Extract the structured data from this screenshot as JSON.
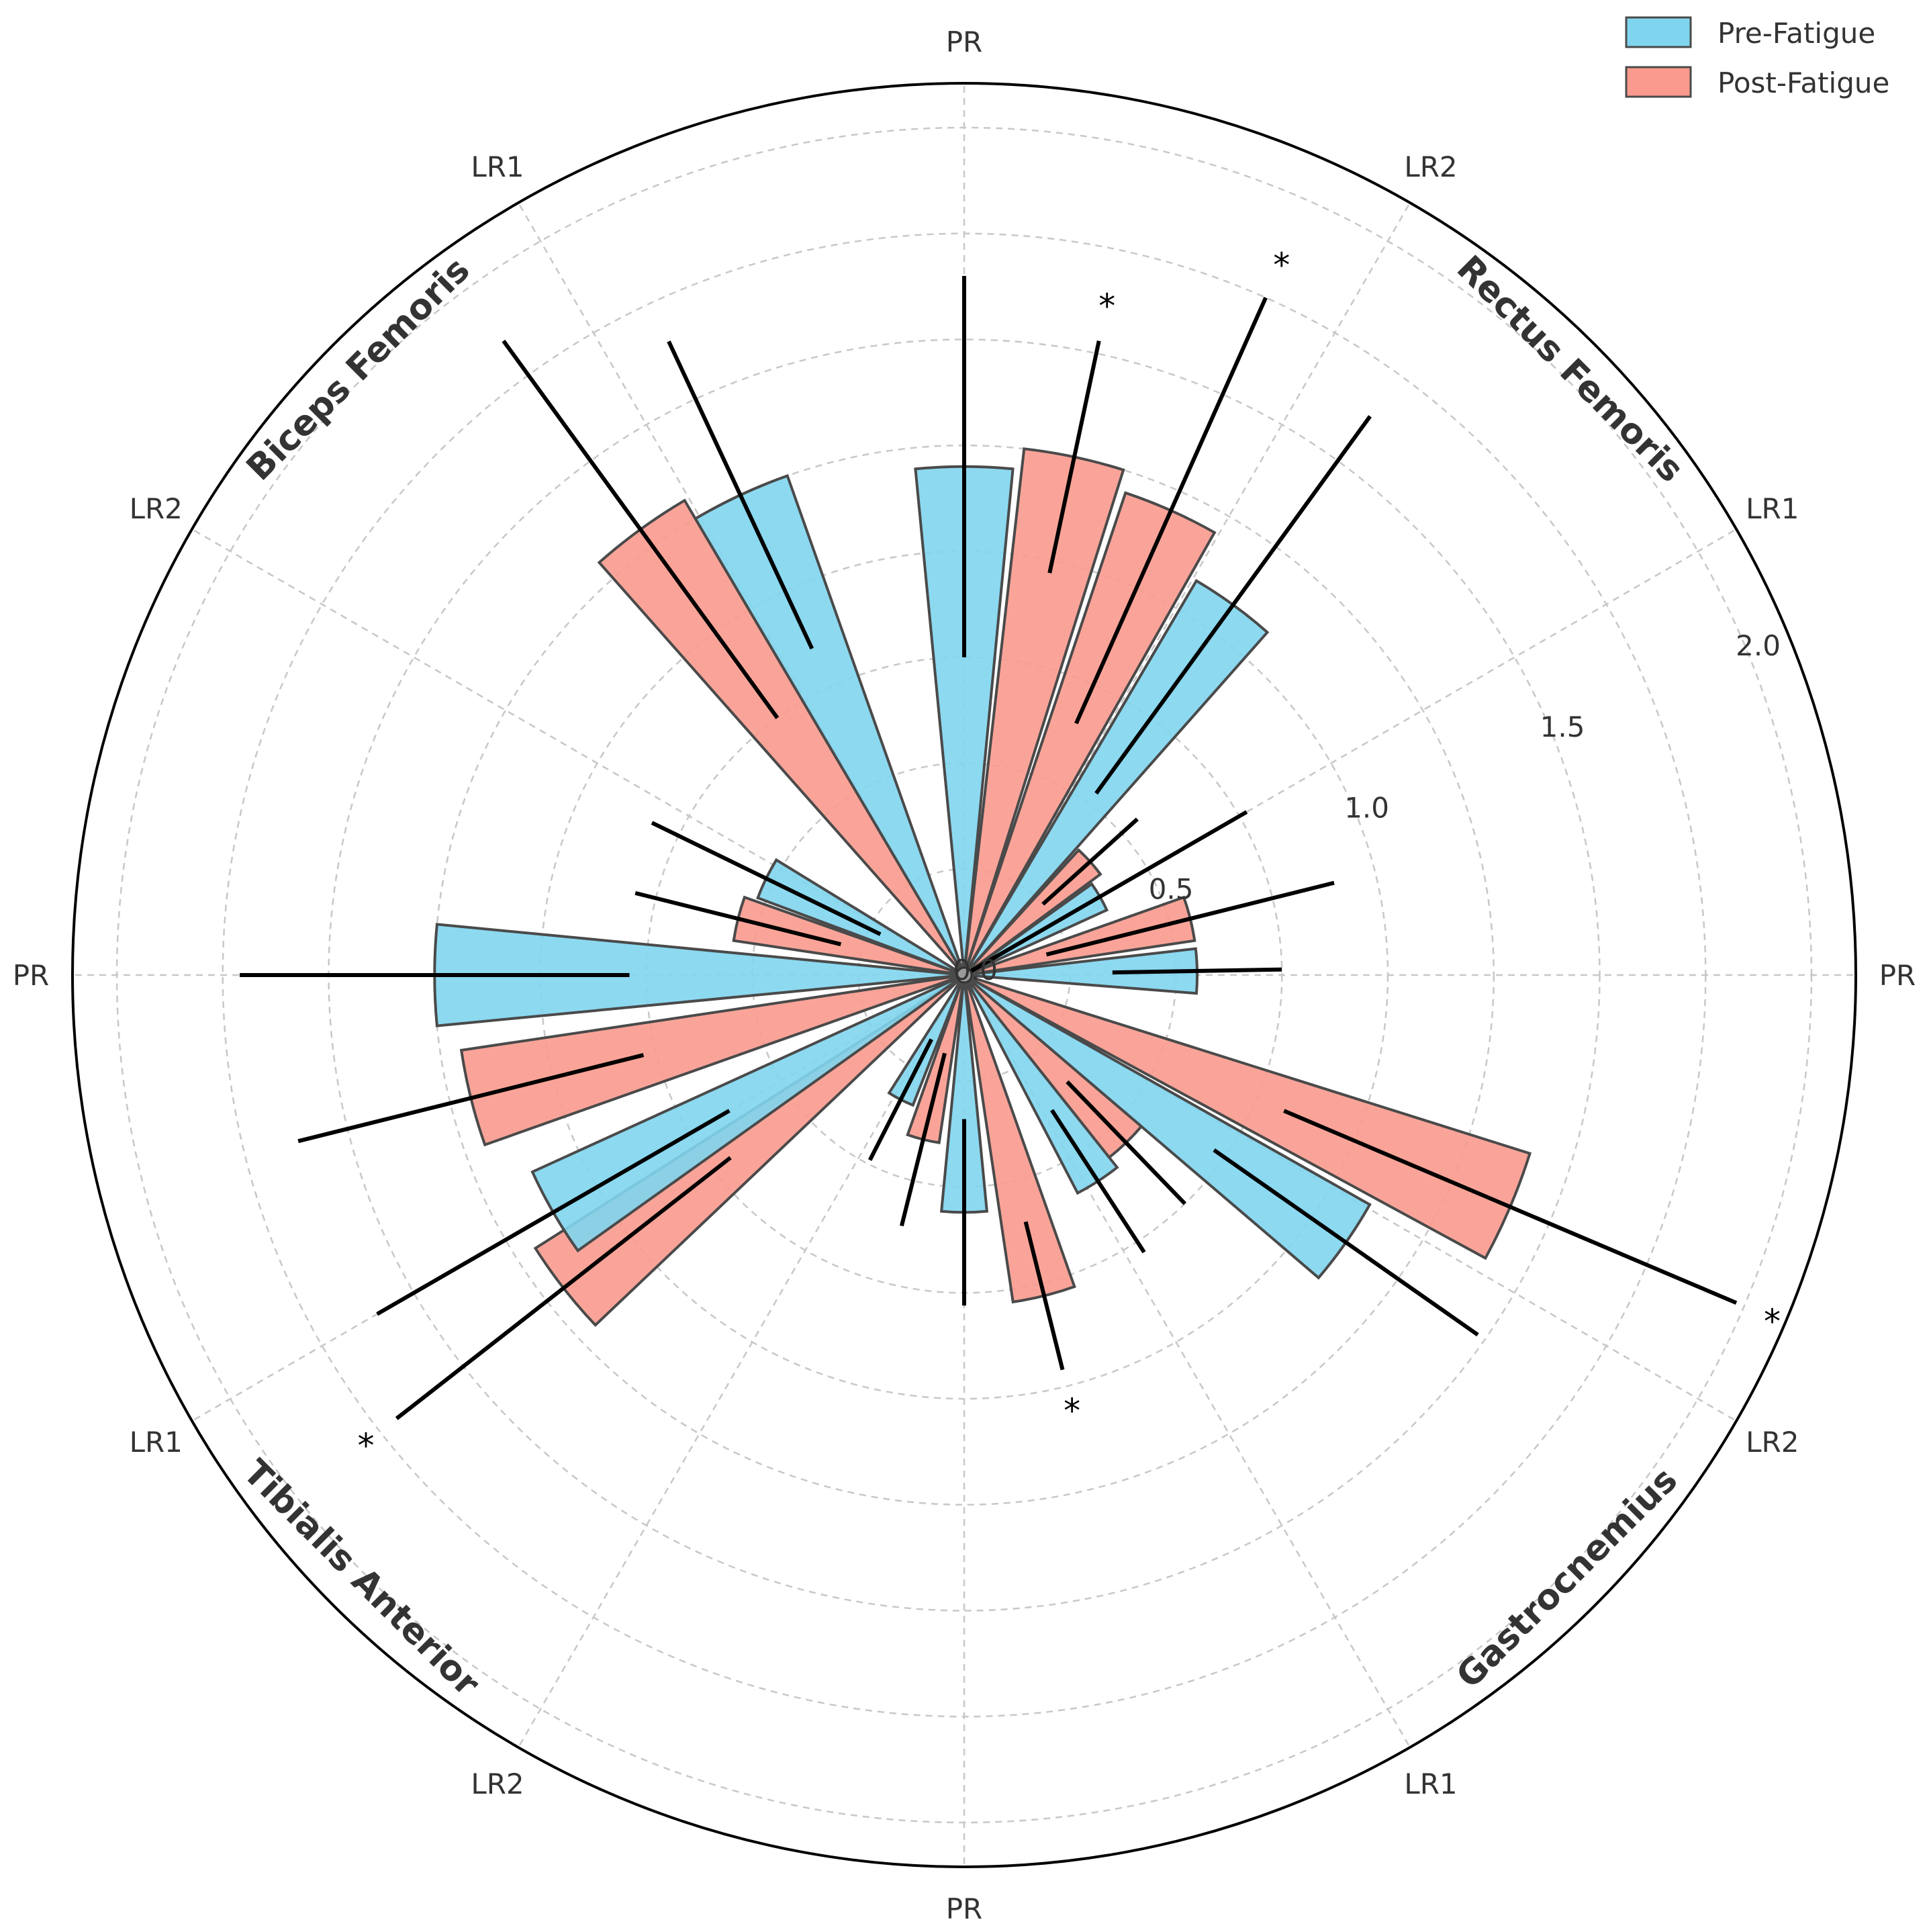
{
  "chart_data": {
    "type": "polar_bar",
    "title": "",
    "colors": {
      "pre": "#7fd5ee",
      "post": "#fa9a8e",
      "edge": "#4a4a4a",
      "grid": "#c8c8c8",
      "error": "#000000"
    },
    "radial_ticks": [
      0.0,
      0.5,
      1.0,
      1.5,
      2.0
    ],
    "radial_tick_labels": [
      "0.0",
      "0.5",
      "1.0",
      "1.5",
      "2.0"
    ],
    "rmax": 2.0,
    "legend": [
      {
        "key": "pre",
        "label": "Pre-Fatigue"
      },
      {
        "key": "post",
        "label": "Post-Fatigue"
      }
    ],
    "phase_labels": [
      {
        "angle": 90,
        "text": "PR"
      },
      {
        "angle": 60,
        "text": "LR2"
      },
      {
        "angle": 30,
        "text": "LR1"
      },
      {
        "angle": 0,
        "text": "PR"
      },
      {
        "angle": -30,
        "text": "LR2"
      },
      {
        "angle": -60,
        "text": "LR1"
      },
      {
        "angle": -90,
        "text": "PR"
      },
      {
        "angle": -120,
        "text": "LR2"
      },
      {
        "angle": -150,
        "text": "LR1"
      },
      {
        "angle": 180,
        "text": "PR"
      },
      {
        "angle": 150,
        "text": "LR2"
      },
      {
        "angle": 120,
        "text": "LR1"
      }
    ],
    "group_labels": [
      {
        "angle": 45,
        "text": "Rectus Femoris"
      },
      {
        "angle": -45,
        "text": "Gastrocnemius"
      },
      {
        "angle": -135,
        "text": "Tibialis Anterior"
      },
      {
        "angle": 135,
        "text": "Biceps Femoris"
      }
    ],
    "bars": [
      {
        "series": "pre",
        "angle": 90,
        "value": 1.2,
        "err": 0.45,
        "sig": false
      },
      {
        "series": "post",
        "angle": 78,
        "value": 1.25,
        "err": 0.28,
        "sig": true
      },
      {
        "series": "post",
        "angle": 66,
        "value": 1.2,
        "err": 0.55,
        "sig": true
      },
      {
        "series": "pre",
        "angle": 54,
        "value": 1.08,
        "err": 0.55,
        "sig": false
      },
      {
        "series": "post",
        "angle": 42,
        "value": 0.4,
        "err": 0.15,
        "sig": false
      },
      {
        "series": "pre",
        "angle": 30,
        "value": 0.37,
        "err": 0.4,
        "sig": false
      },
      {
        "series": "post",
        "angle": 14,
        "value": 0.55,
        "err": 0.35,
        "sig": false
      },
      {
        "series": "pre",
        "angle": 1,
        "value": 0.55,
        "err": 0.2,
        "sig": false
      },
      {
        "series": "post",
        "angle": -23,
        "value": 1.4,
        "err": 0.58,
        "sig": true
      },
      {
        "series": "pre",
        "angle": -35,
        "value": 1.1,
        "err": 0.38,
        "sig": false
      },
      {
        "series": "post",
        "angle": -46,
        "value": 0.55,
        "err": 0.2,
        "sig": false
      },
      {
        "series": "pre",
        "angle": -57,
        "value": 0.58,
        "err": 0.2,
        "sig": false
      },
      {
        "series": "post",
        "angle": -76,
        "value": 0.78,
        "err": 0.18,
        "sig": true
      },
      {
        "series": "pre",
        "angle": -90,
        "value": 0.56,
        "err": 0.22,
        "sig": false
      },
      {
        "series": "post",
        "angle": -104,
        "value": 0.4,
        "err": 0.21,
        "sig": false
      },
      {
        "series": "pre",
        "angle": -117,
        "value": 0.33,
        "err": 0.16,
        "sig": false
      },
      {
        "series": "post",
        "angle": -142,
        "value": 1.2,
        "err": 0.5,
        "sig": true
      },
      {
        "series": "pre",
        "angle": -150,
        "value": 1.12,
        "err": 0.48,
        "sig": false
      },
      {
        "series": "post",
        "angle": -166,
        "value": 1.2,
        "err": 0.42,
        "sig": false
      },
      {
        "series": "pre",
        "angle": 180,
        "value": 1.25,
        "err": 0.46,
        "sig": false
      },
      {
        "series": "post",
        "angle": 166,
        "value": 0.55,
        "err": 0.25,
        "sig": false
      },
      {
        "series": "pre",
        "angle": 154,
        "value": 0.52,
        "err": 0.3,
        "sig": false
      },
      {
        "series": "post",
        "angle": 126,
        "value": 1.3,
        "err": 0.55,
        "sig": false
      },
      {
        "series": "pre",
        "angle": 115,
        "value": 1.25,
        "err": 0.4,
        "sig": false
      }
    ],
    "bar_width_deg": 11,
    "sig_marker": "*"
  }
}
